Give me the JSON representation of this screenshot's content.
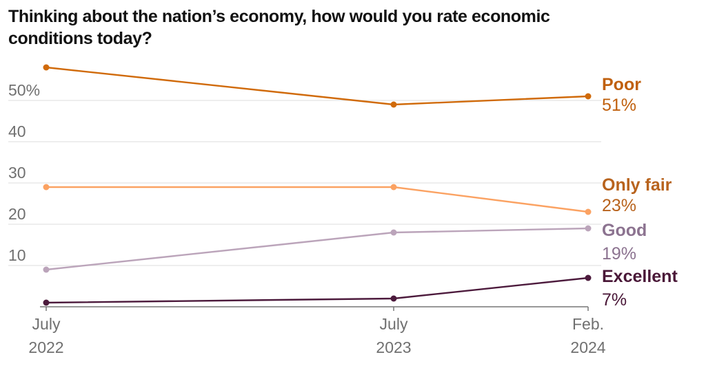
{
  "chart_data": {
    "type": "line",
    "title": "Thinking about the nation’s economy, how would you rate economic conditions today?",
    "xlabel": "",
    "ylabel": "",
    "ylim": [
      0,
      58
    ],
    "grid": true,
    "legend": "direct labels at right",
    "x": [
      {
        "line1": "July",
        "line2": "2022"
      },
      {
        "line1": "July",
        "line2": "2023"
      },
      {
        "line1": "Feb.",
        "line2": "2024"
      }
    ],
    "yticks": [
      {
        "value": 10,
        "label": "10"
      },
      {
        "value": 20,
        "label": "20"
      },
      {
        "value": 30,
        "label": "30"
      },
      {
        "value": 40,
        "label": "40"
      },
      {
        "value": 50,
        "label": "50%"
      }
    ],
    "series": [
      {
        "name": "Poor",
        "values": [
          58,
          49,
          51
        ],
        "end_label": "51%",
        "line_color": "#d06a0a",
        "label_color": "#c0600d"
      },
      {
        "name": "Only fair",
        "values": [
          29,
          29,
          23
        ],
        "end_label": "23%",
        "line_color": "#fba262",
        "label_color": "#b8631d"
      },
      {
        "name": "Good",
        "values": [
          9,
          18,
          19
        ],
        "end_label": "19%",
        "line_color": "#bba4ba",
        "label_color": "#8c7390"
      },
      {
        "name": "Excellent",
        "values": [
          1,
          2,
          7
        ],
        "end_label": "7%",
        "line_color": "#4c1a3c",
        "label_color": "#4a1838"
      }
    ]
  }
}
